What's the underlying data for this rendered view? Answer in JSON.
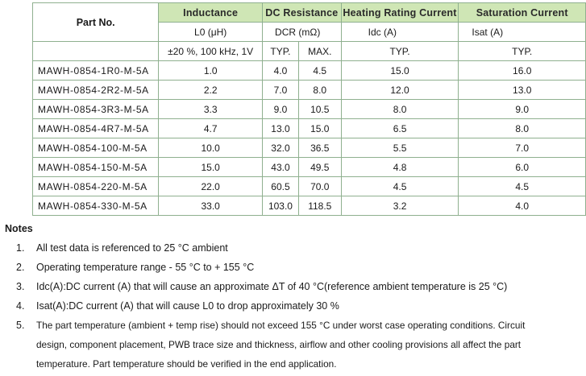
{
  "table": {
    "headers": {
      "part_no": "Part No.",
      "inductance": "Inductance",
      "inductance_sym": "L0 (μH)",
      "inductance_cond": "±20 %, 100 kHz, 1V",
      "dcr": "DC Resistance",
      "dcr_sym": "DCR (mΩ)",
      "dcr_typ": "TYP.",
      "dcr_max": "MAX.",
      "heating": "Heating Rating Current",
      "heating_sym": "Idc (A)",
      "heating_typ": "TYP.",
      "saturation": "Saturation Current",
      "saturation_sym": "Isat (A)",
      "saturation_typ": "TYP."
    },
    "rows": [
      {
        "part": "MAWH-0854-1R0-M-5A",
        "l0": "1.0",
        "dcr_typ": "4.0",
        "dcr_max": "4.5",
        "idc": "15.0",
        "isat": "16.0"
      },
      {
        "part": "MAWH-0854-2R2-M-5A",
        "l0": "2.2",
        "dcr_typ": "7.0",
        "dcr_max": "8.0",
        "idc": "12.0",
        "isat": "13.0"
      },
      {
        "part": "MAWH-0854-3R3-M-5A",
        "l0": "3.3",
        "dcr_typ": "9.0",
        "dcr_max": "10.5",
        "idc": "8.0",
        "isat": "9.0"
      },
      {
        "part": "MAWH-0854-4R7-M-5A",
        "l0": "4.7",
        "dcr_typ": "13.0",
        "dcr_max": "15.0",
        "idc": "6.5",
        "isat": "8.0"
      },
      {
        "part": "MAWH-0854-100-M-5A",
        "l0": "10.0",
        "dcr_typ": "32.0",
        "dcr_max": "36.5",
        "idc": "5.5",
        "isat": "7.0"
      },
      {
        "part": "MAWH-0854-150-M-5A",
        "l0": "15.0",
        "dcr_typ": "43.0",
        "dcr_max": "49.5",
        "idc": "4.8",
        "isat": "6.0"
      },
      {
        "part": "MAWH-0854-220-M-5A",
        "l0": "22.0",
        "dcr_typ": "60.5",
        "dcr_max": "70.0",
        "idc": "4.5",
        "isat": "4.5"
      },
      {
        "part": "MAWH-0854-330-M-5A",
        "l0": "33.0",
        "dcr_typ": "103.0",
        "dcr_max": "118.5",
        "idc": "3.2",
        "isat": "4.0"
      }
    ]
  },
  "notes": {
    "title": "Notes",
    "items": [
      {
        "num": "1.",
        "text": "All test data is referenced to 25 °C ambient"
      },
      {
        "num": "2.",
        "text": "Operating temperature range - 55 °C to + 155 °C"
      },
      {
        "num": "3.",
        "text": "Idc(A):DC current (A) that will cause an approximate ΔT of 40 °C(reference ambient temperature is 25 °C)"
      },
      {
        "num": "4.",
        "text": "Isat(A):DC current (A) that will cause L0 to drop approximately 30 %"
      },
      {
        "num": "5.",
        "text": "The part temperature (ambient + temp rise) should not exceed 155 °C under worst case operating conditions. Circuit"
      }
    ],
    "item5_cont1": "design, component placement, PWB trace size and thickness, airflow and other cooling provisions all affect the part",
    "item5_cont2": "temperature. Part temperature should be verified in the end application."
  }
}
